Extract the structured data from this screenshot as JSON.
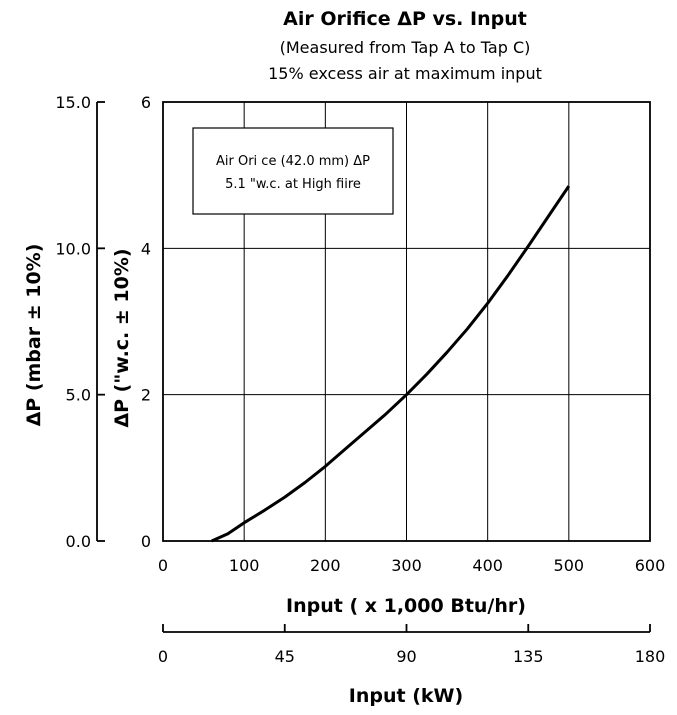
{
  "chart_data": {
    "type": "line",
    "title": "Air Orifice ΔP vs. Input",
    "subtitle_lines": [
      "(Measured from Tap A to Tap C)",
      "15% excess air at maximum input"
    ],
    "xlabel": "Input  ( x 1,000 Btu/hr)",
    "x2label": "Input  (kW)",
    "ylabel": "ΔP (\"w.c. ± 10%)",
    "y2label": "ΔP  (mbar ± 10%)",
    "xlim": [
      0,
      600
    ],
    "ylim": [
      0,
      6
    ],
    "x_ticks": [
      0,
      100,
      200,
      300,
      400,
      500,
      600
    ],
    "x_tick_labels": [
      "0",
      "100",
      "200",
      "300",
      "400",
      "500",
      "600"
    ],
    "x2_ticks": [
      "0",
      "45",
      "90",
      "135",
      "180"
    ],
    "y_ticks": [
      0,
      2,
      4,
      6
    ],
    "y_tick_labels": [
      "0",
      "2",
      "4",
      "6"
    ],
    "y2_ticks": [
      "0.0",
      "5.0",
      "10.0",
      "15.0"
    ],
    "grid": true,
    "legend_lines": [
      "Air Ori  ce (42.0 mm) ΔP",
      "5.1 \"w.c. at High fiire"
    ],
    "series": [
      {
        "x": [
          60,
          80,
          100,
          125,
          150,
          175,
          200,
          225,
          250,
          275,
          300,
          325,
          350,
          375,
          400,
          425,
          450,
          475,
          500
        ],
        "y": [
          0,
          0.1,
          0.25,
          0.42,
          0.6,
          0.8,
          1.02,
          1.26,
          1.5,
          1.74,
          2.0,
          2.28,
          2.58,
          2.9,
          3.25,
          3.63,
          4.03,
          4.44,
          4.85
        ]
      }
    ]
  }
}
